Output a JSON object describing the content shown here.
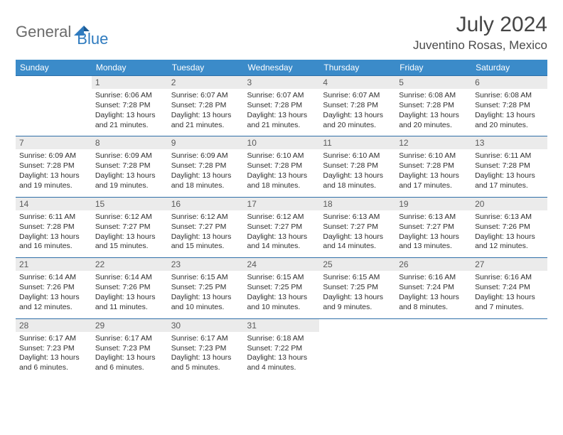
{
  "brand": {
    "text1": "General",
    "text2": "Blue"
  },
  "title": "July 2024",
  "location": "Juventino Rosas, Mexico",
  "colors": {
    "header_bg": "#3b8bc9",
    "header_text": "#ffffff",
    "daynum_bg": "#ebebeb",
    "border": "#2f6fa8",
    "brand_gray": "#6b6b6b",
    "brand_blue": "#2f7bbf"
  },
  "weekdays": [
    "Sunday",
    "Monday",
    "Tuesday",
    "Wednesday",
    "Thursday",
    "Friday",
    "Saturday"
  ],
  "weeks": [
    [
      {
        "empty": true
      },
      {
        "num": "1",
        "sunrise": "Sunrise: 6:06 AM",
        "sunset": "Sunset: 7:28 PM",
        "day1": "Daylight: 13 hours",
        "day2": "and 21 minutes."
      },
      {
        "num": "2",
        "sunrise": "Sunrise: 6:07 AM",
        "sunset": "Sunset: 7:28 PM",
        "day1": "Daylight: 13 hours",
        "day2": "and 21 minutes."
      },
      {
        "num": "3",
        "sunrise": "Sunrise: 6:07 AM",
        "sunset": "Sunset: 7:28 PM",
        "day1": "Daylight: 13 hours",
        "day2": "and 21 minutes."
      },
      {
        "num": "4",
        "sunrise": "Sunrise: 6:07 AM",
        "sunset": "Sunset: 7:28 PM",
        "day1": "Daylight: 13 hours",
        "day2": "and 20 minutes."
      },
      {
        "num": "5",
        "sunrise": "Sunrise: 6:08 AM",
        "sunset": "Sunset: 7:28 PM",
        "day1": "Daylight: 13 hours",
        "day2": "and 20 minutes."
      },
      {
        "num": "6",
        "sunrise": "Sunrise: 6:08 AM",
        "sunset": "Sunset: 7:28 PM",
        "day1": "Daylight: 13 hours",
        "day2": "and 20 minutes."
      }
    ],
    [
      {
        "num": "7",
        "sunrise": "Sunrise: 6:09 AM",
        "sunset": "Sunset: 7:28 PM",
        "day1": "Daylight: 13 hours",
        "day2": "and 19 minutes."
      },
      {
        "num": "8",
        "sunrise": "Sunrise: 6:09 AM",
        "sunset": "Sunset: 7:28 PM",
        "day1": "Daylight: 13 hours",
        "day2": "and 19 minutes."
      },
      {
        "num": "9",
        "sunrise": "Sunrise: 6:09 AM",
        "sunset": "Sunset: 7:28 PM",
        "day1": "Daylight: 13 hours",
        "day2": "and 18 minutes."
      },
      {
        "num": "10",
        "sunrise": "Sunrise: 6:10 AM",
        "sunset": "Sunset: 7:28 PM",
        "day1": "Daylight: 13 hours",
        "day2": "and 18 minutes."
      },
      {
        "num": "11",
        "sunrise": "Sunrise: 6:10 AM",
        "sunset": "Sunset: 7:28 PM",
        "day1": "Daylight: 13 hours",
        "day2": "and 18 minutes."
      },
      {
        "num": "12",
        "sunrise": "Sunrise: 6:10 AM",
        "sunset": "Sunset: 7:28 PM",
        "day1": "Daylight: 13 hours",
        "day2": "and 17 minutes."
      },
      {
        "num": "13",
        "sunrise": "Sunrise: 6:11 AM",
        "sunset": "Sunset: 7:28 PM",
        "day1": "Daylight: 13 hours",
        "day2": "and 17 minutes."
      }
    ],
    [
      {
        "num": "14",
        "sunrise": "Sunrise: 6:11 AM",
        "sunset": "Sunset: 7:28 PM",
        "day1": "Daylight: 13 hours",
        "day2": "and 16 minutes."
      },
      {
        "num": "15",
        "sunrise": "Sunrise: 6:12 AM",
        "sunset": "Sunset: 7:27 PM",
        "day1": "Daylight: 13 hours",
        "day2": "and 15 minutes."
      },
      {
        "num": "16",
        "sunrise": "Sunrise: 6:12 AM",
        "sunset": "Sunset: 7:27 PM",
        "day1": "Daylight: 13 hours",
        "day2": "and 15 minutes."
      },
      {
        "num": "17",
        "sunrise": "Sunrise: 6:12 AM",
        "sunset": "Sunset: 7:27 PM",
        "day1": "Daylight: 13 hours",
        "day2": "and 14 minutes."
      },
      {
        "num": "18",
        "sunrise": "Sunrise: 6:13 AM",
        "sunset": "Sunset: 7:27 PM",
        "day1": "Daylight: 13 hours",
        "day2": "and 14 minutes."
      },
      {
        "num": "19",
        "sunrise": "Sunrise: 6:13 AM",
        "sunset": "Sunset: 7:27 PM",
        "day1": "Daylight: 13 hours",
        "day2": "and 13 minutes."
      },
      {
        "num": "20",
        "sunrise": "Sunrise: 6:13 AM",
        "sunset": "Sunset: 7:26 PM",
        "day1": "Daylight: 13 hours",
        "day2": "and 12 minutes."
      }
    ],
    [
      {
        "num": "21",
        "sunrise": "Sunrise: 6:14 AM",
        "sunset": "Sunset: 7:26 PM",
        "day1": "Daylight: 13 hours",
        "day2": "and 12 minutes."
      },
      {
        "num": "22",
        "sunrise": "Sunrise: 6:14 AM",
        "sunset": "Sunset: 7:26 PM",
        "day1": "Daylight: 13 hours",
        "day2": "and 11 minutes."
      },
      {
        "num": "23",
        "sunrise": "Sunrise: 6:15 AM",
        "sunset": "Sunset: 7:25 PM",
        "day1": "Daylight: 13 hours",
        "day2": "and 10 minutes."
      },
      {
        "num": "24",
        "sunrise": "Sunrise: 6:15 AM",
        "sunset": "Sunset: 7:25 PM",
        "day1": "Daylight: 13 hours",
        "day2": "and 10 minutes."
      },
      {
        "num": "25",
        "sunrise": "Sunrise: 6:15 AM",
        "sunset": "Sunset: 7:25 PM",
        "day1": "Daylight: 13 hours",
        "day2": "and 9 minutes."
      },
      {
        "num": "26",
        "sunrise": "Sunrise: 6:16 AM",
        "sunset": "Sunset: 7:24 PM",
        "day1": "Daylight: 13 hours",
        "day2": "and 8 minutes."
      },
      {
        "num": "27",
        "sunrise": "Sunrise: 6:16 AM",
        "sunset": "Sunset: 7:24 PM",
        "day1": "Daylight: 13 hours",
        "day2": "and 7 minutes."
      }
    ],
    [
      {
        "num": "28",
        "sunrise": "Sunrise: 6:17 AM",
        "sunset": "Sunset: 7:23 PM",
        "day1": "Daylight: 13 hours",
        "day2": "and 6 minutes."
      },
      {
        "num": "29",
        "sunrise": "Sunrise: 6:17 AM",
        "sunset": "Sunset: 7:23 PM",
        "day1": "Daylight: 13 hours",
        "day2": "and 6 minutes."
      },
      {
        "num": "30",
        "sunrise": "Sunrise: 6:17 AM",
        "sunset": "Sunset: 7:23 PM",
        "day1": "Daylight: 13 hours",
        "day2": "and 5 minutes."
      },
      {
        "num": "31",
        "sunrise": "Sunrise: 6:18 AM",
        "sunset": "Sunset: 7:22 PM",
        "day1": "Daylight: 13 hours",
        "day2": "and 4 minutes."
      },
      {
        "empty": true
      },
      {
        "empty": true
      },
      {
        "empty": true
      }
    ]
  ]
}
